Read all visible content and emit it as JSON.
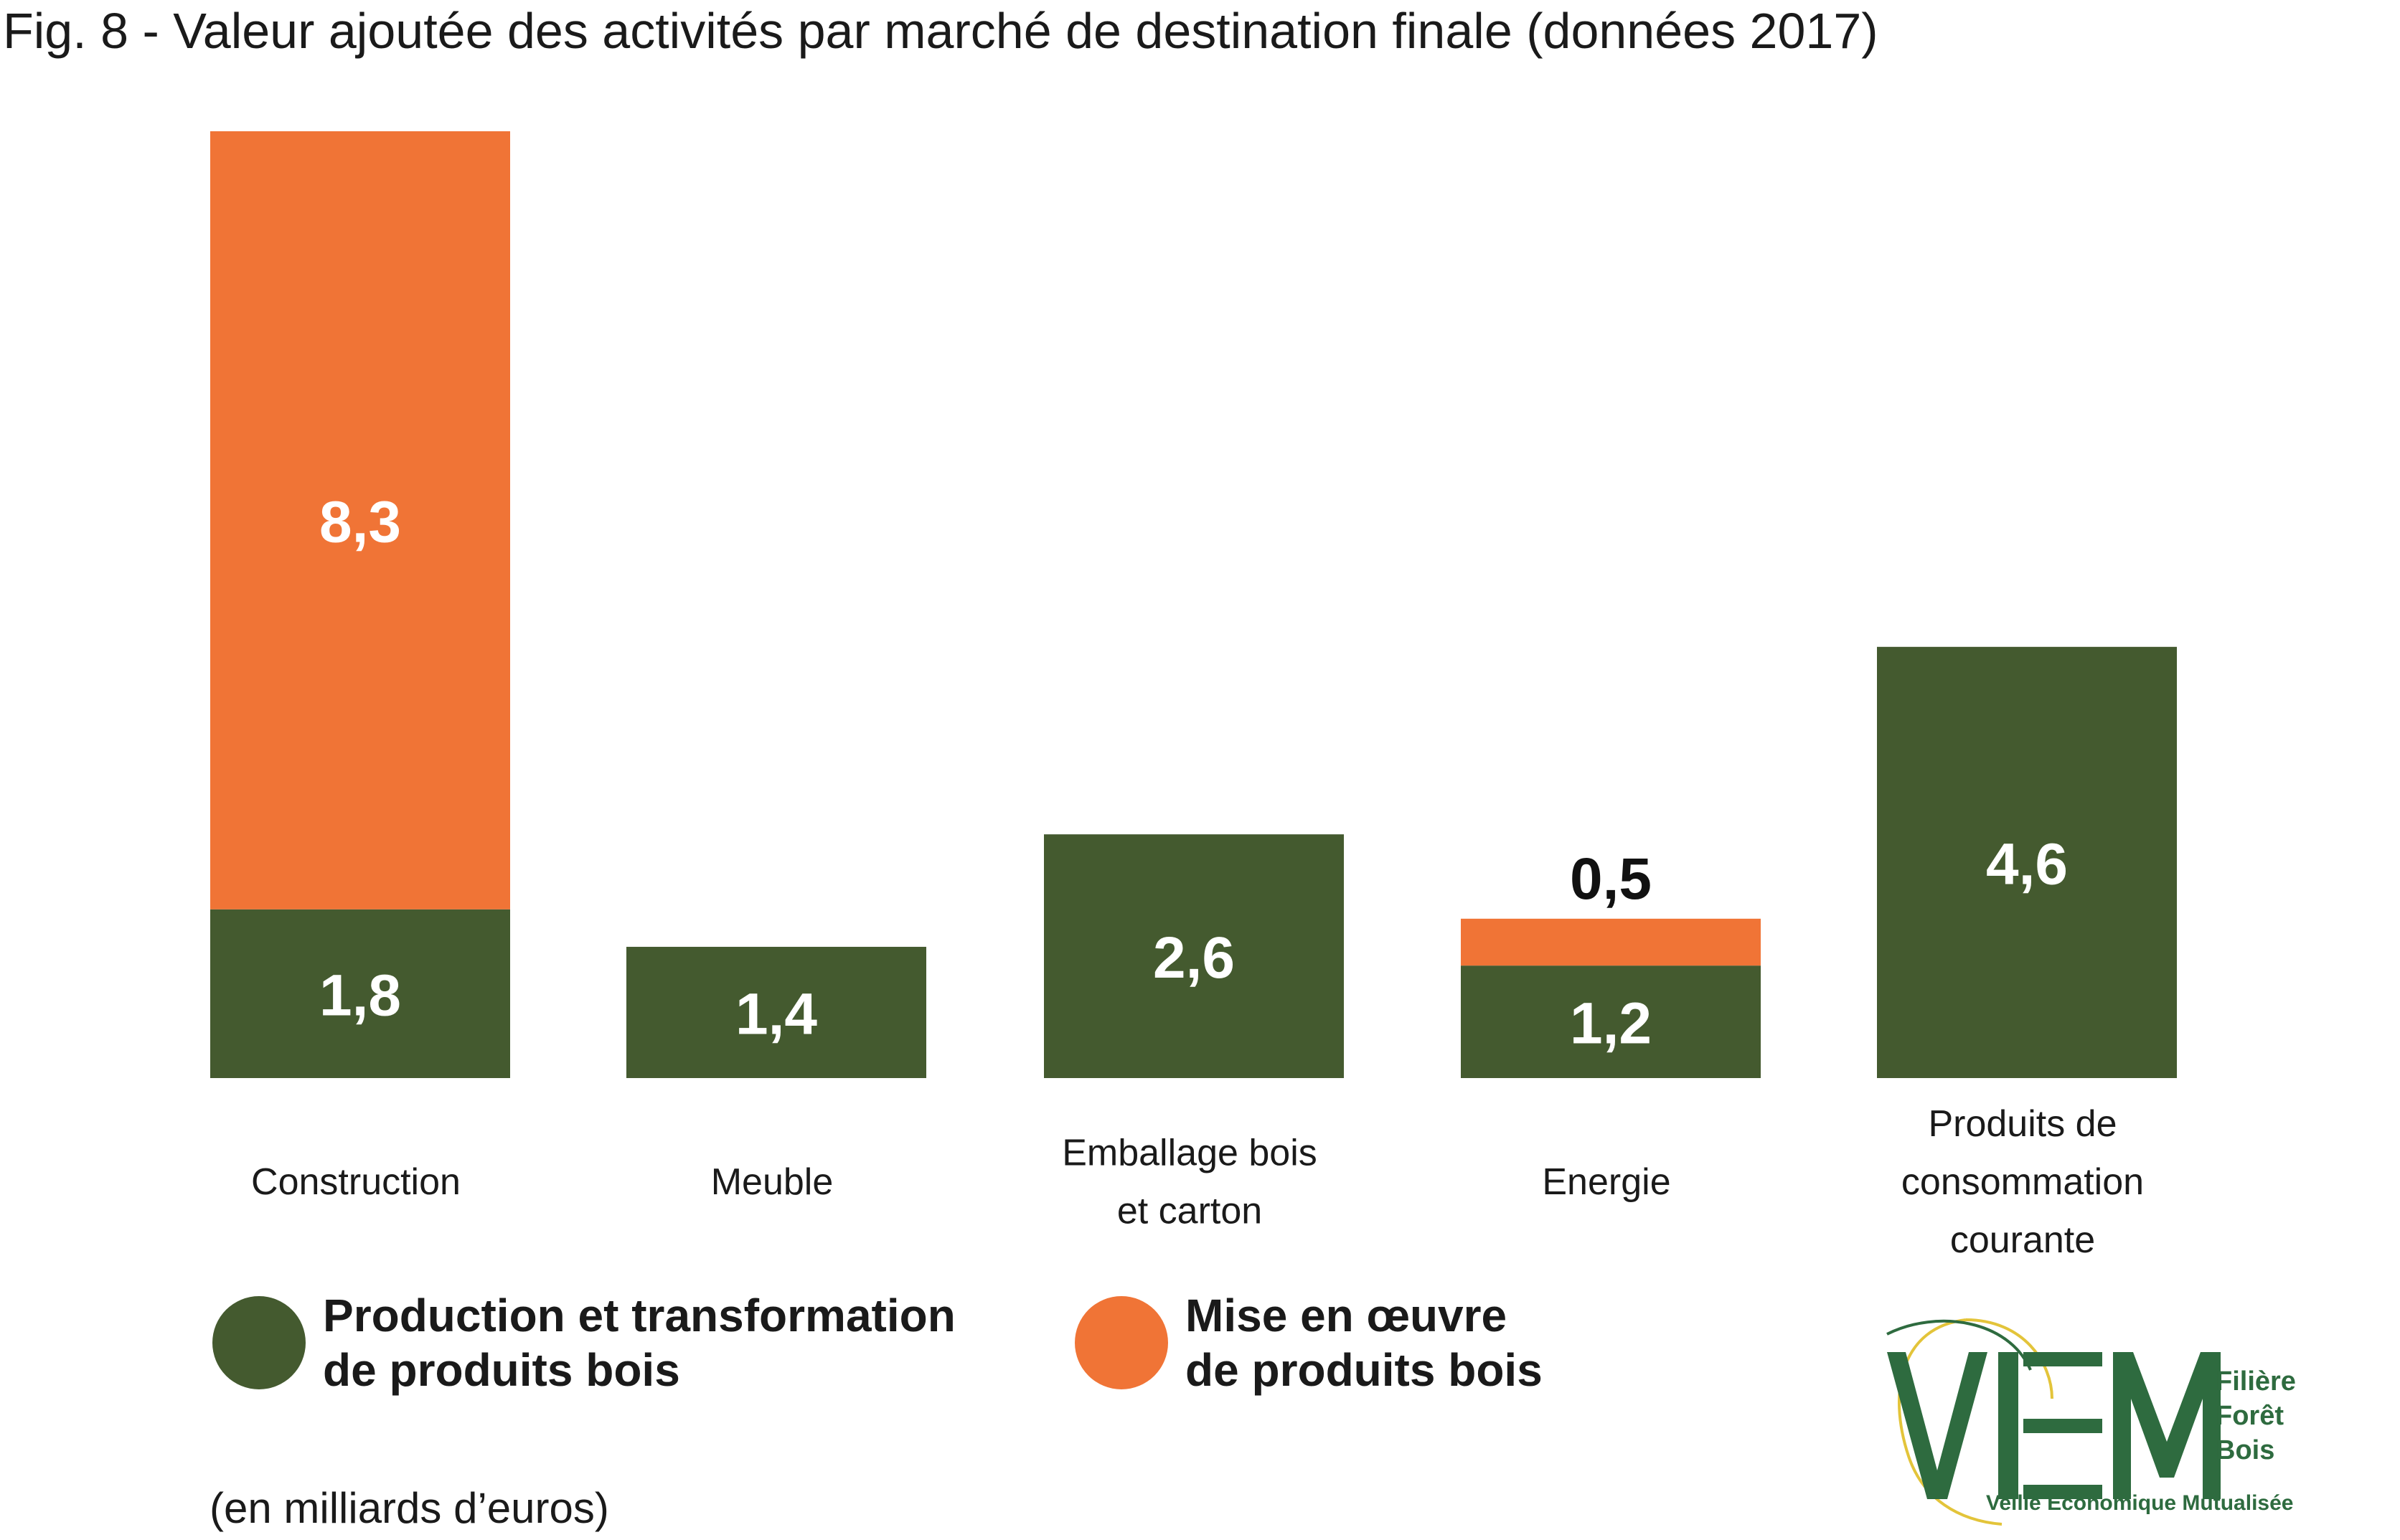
{
  "title": "Fig. 8 - Valeur ajoutée des activités par marché de destination finale (données 2017)",
  "colors": {
    "production": "#445a2f",
    "mise_en_oeuvre": "#f07436",
    "logo_green": "#2e6b3f",
    "logo_yellow": "#e3c43a"
  },
  "chart_data": {
    "type": "bar",
    "stacked": true,
    "title": "Fig. 8 - Valeur ajoutée des activités par marché de destination finale (données 2017)",
    "categories": [
      [
        "Construction"
      ],
      [
        "Meuble"
      ],
      [
        "Emballage bois",
        "et carton"
      ],
      [
        "Energie"
      ],
      [
        "Produits de",
        "consommation",
        "courante"
      ]
    ],
    "series": [
      {
        "name": "Production et transformation de produits bois",
        "values": [
          1.8,
          1.4,
          2.6,
          1.2,
          4.6
        ],
        "labels": [
          "1,8",
          "1,4",
          "2,6",
          "1,2",
          "4,6"
        ]
      },
      {
        "name": "Mise en œuvre de produits bois",
        "values": [
          8.3,
          0,
          0,
          0.5,
          0
        ],
        "labels": [
          "8,3",
          "",
          "",
          "0,5",
          ""
        ]
      }
    ],
    "ylim": [
      0,
      10.1
    ],
    "grid": false,
    "legend_position": "bottom-left"
  },
  "legend": [
    {
      "label": "Production et transformation\nde produits bois"
    },
    {
      "label": "Mise en œuvre\nde produits bois"
    }
  ],
  "unit_note": "(en milliards d’euros)",
  "logo": {
    "letters": "VEM",
    "line1": "Filière",
    "line2": "Forêt",
    "line3": "Bois",
    "tagline": "Veille Economique Mutualisée"
  }
}
